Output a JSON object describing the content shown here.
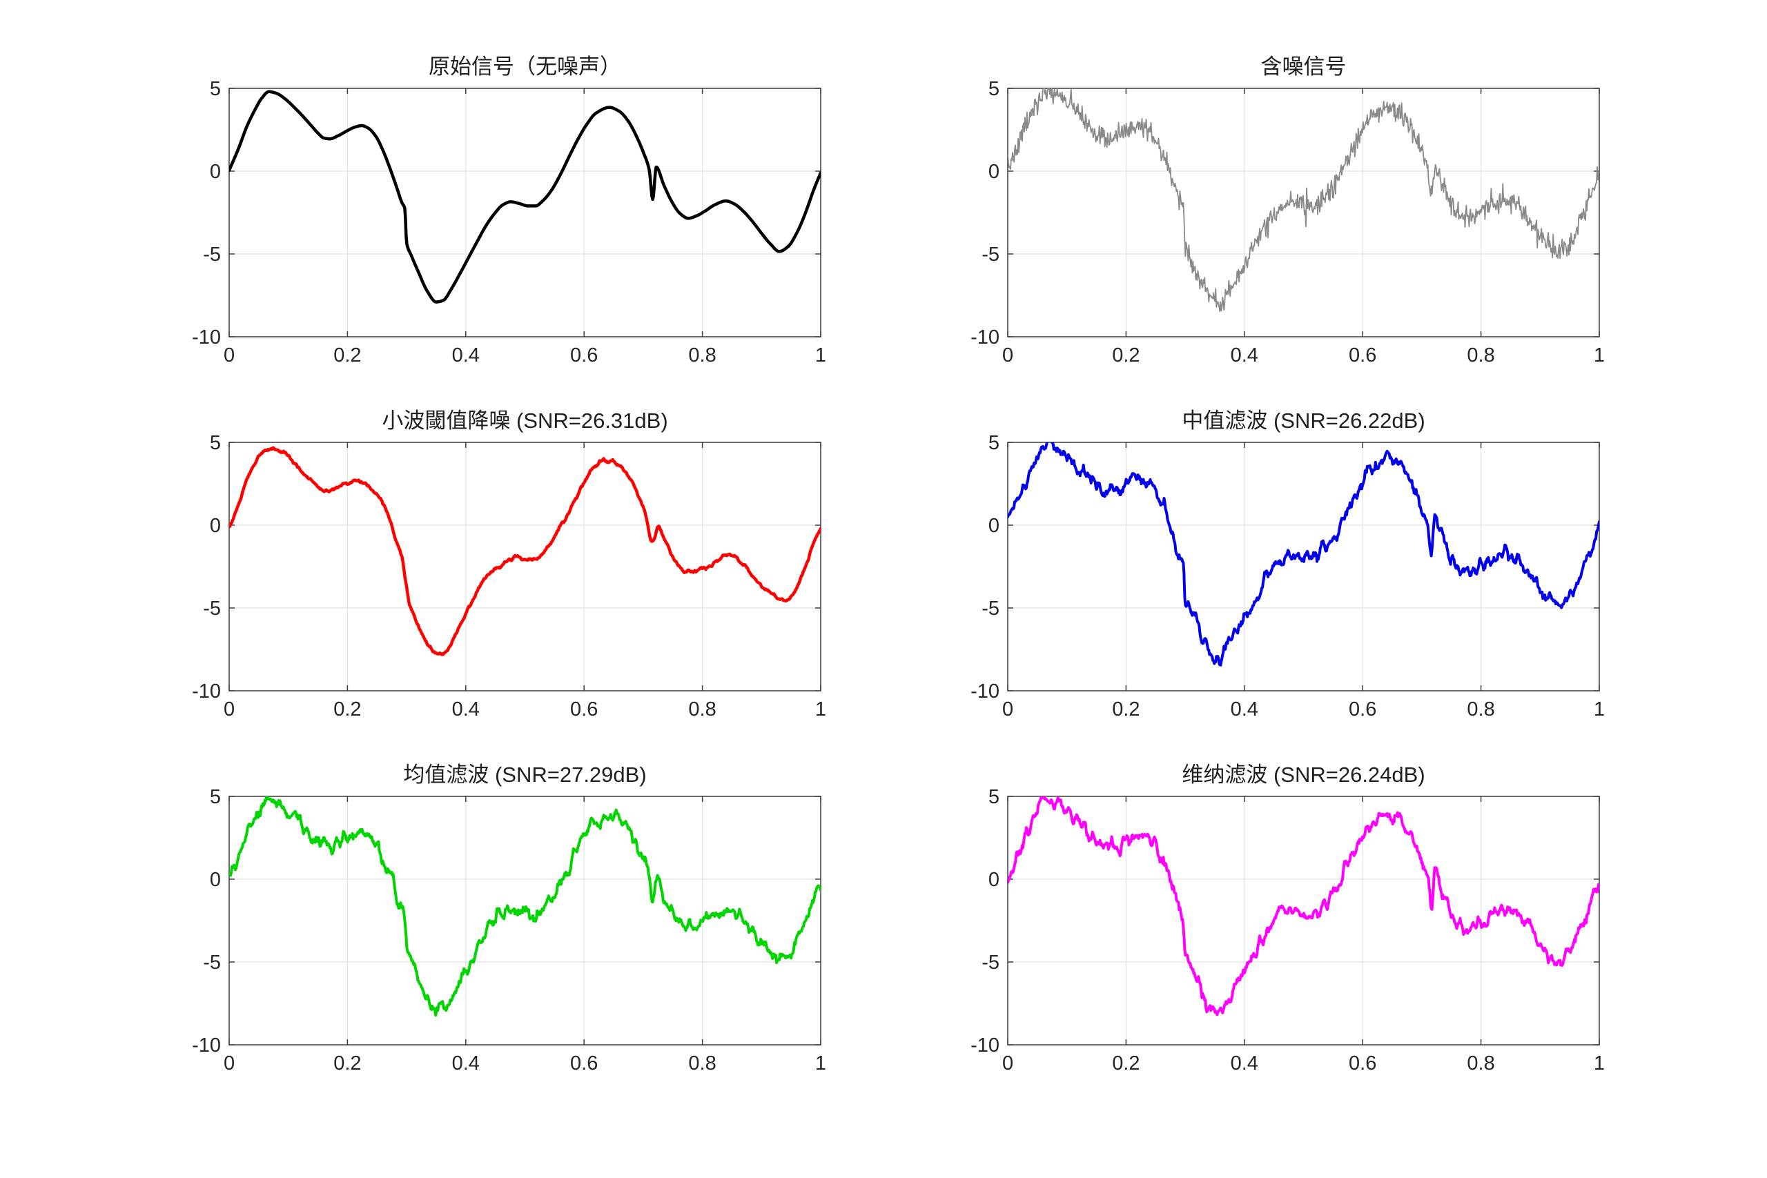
{
  "figure": {
    "background": "#ffffff",
    "description": "MATLAB-style 3x2 subplot figure comparing signal denoising methods"
  },
  "chart_data": {
    "type": "line",
    "layout": "3 rows x 2 columns subplots",
    "xlim": [
      0,
      1
    ],
    "ylim": [
      -10,
      5
    ],
    "x_ticks": [
      0,
      0.2,
      0.4,
      0.6,
      0.8,
      1
    ],
    "x_tick_labels": [
      "0",
      "0.2",
      "0.4",
      "0.6",
      "0.8",
      "1"
    ],
    "y_ticks": [
      5,
      0,
      -5,
      -10
    ],
    "y_tick_labels": [
      "5",
      "0",
      "-5",
      "-10"
    ],
    "grid": true,
    "grid_color": "#e2e2e2",
    "axis_color": "#3d3d3d",
    "tick_label_color": "#262626",
    "base_signal_control_points": [
      [
        0.0,
        0.05
      ],
      [
        0.015,
        1.3
      ],
      [
        0.03,
        2.7
      ],
      [
        0.045,
        3.8
      ],
      [
        0.055,
        4.4
      ],
      [
        0.067,
        4.8
      ],
      [
        0.08,
        4.7
      ],
      [
        0.095,
        4.35
      ],
      [
        0.11,
        3.85
      ],
      [
        0.125,
        3.3
      ],
      [
        0.14,
        2.7
      ],
      [
        0.15,
        2.3
      ],
      [
        0.16,
        2.0
      ],
      [
        0.17,
        1.95
      ],
      [
        0.185,
        2.15
      ],
      [
        0.2,
        2.45
      ],
      [
        0.212,
        2.65
      ],
      [
        0.224,
        2.75
      ],
      [
        0.235,
        2.6
      ],
      [
        0.248,
        2.1
      ],
      [
        0.26,
        1.25
      ],
      [
        0.272,
        0.15
      ],
      [
        0.283,
        -0.95
      ],
      [
        0.292,
        -1.9
      ],
      [
        0.297,
        -2.25
      ],
      [
        0.3,
        -4.35
      ],
      [
        0.308,
        -5.1
      ],
      [
        0.32,
        -6.1
      ],
      [
        0.335,
        -7.25
      ],
      [
        0.35,
        -7.9
      ],
      [
        0.362,
        -7.8
      ],
      [
        0.375,
        -7.15
      ],
      [
        0.39,
        -6.2
      ],
      [
        0.405,
        -5.2
      ],
      [
        0.42,
        -4.2
      ],
      [
        0.435,
        -3.25
      ],
      [
        0.45,
        -2.5
      ],
      [
        0.462,
        -2.05
      ],
      [
        0.476,
        -1.85
      ],
      [
        0.49,
        -1.95
      ],
      [
        0.505,
        -2.1
      ],
      [
        0.518,
        -2.1
      ],
      [
        0.53,
        -1.8
      ],
      [
        0.545,
        -1.15
      ],
      [
        0.56,
        -0.2
      ],
      [
        0.575,
        0.9
      ],
      [
        0.59,
        1.95
      ],
      [
        0.605,
        2.85
      ],
      [
        0.62,
        3.5
      ],
      [
        0.643,
        3.85
      ],
      [
        0.66,
        3.6
      ],
      [
        0.675,
        3.0
      ],
      [
        0.69,
        2.0
      ],
      [
        0.7,
        1.15
      ],
      [
        0.71,
        0.1
      ],
      [
        0.716,
        -1.7
      ],
      [
        0.722,
        0.25
      ],
      [
        0.735,
        -0.85
      ],
      [
        0.75,
        -1.95
      ],
      [
        0.762,
        -2.55
      ],
      [
        0.776,
        -2.85
      ],
      [
        0.79,
        -2.7
      ],
      [
        0.805,
        -2.4
      ],
      [
        0.82,
        -2.05
      ],
      [
        0.84,
        -1.8
      ],
      [
        0.855,
        -2.0
      ],
      [
        0.87,
        -2.45
      ],
      [
        0.885,
        -3.05
      ],
      [
        0.9,
        -3.75
      ],
      [
        0.915,
        -4.4
      ],
      [
        0.93,
        -4.85
      ],
      [
        0.945,
        -4.55
      ],
      [
        0.96,
        -3.7
      ],
      [
        0.975,
        -2.45
      ],
      [
        0.988,
        -1.15
      ],
      [
        1.0,
        -0.1
      ]
    ],
    "subplots": [
      {
        "id": "original",
        "title": "原始信号（无噪声）",
        "color": "#000000",
        "line_width": 4.5,
        "noise_sigma": 0,
        "noise_smooth": 1,
        "signal_smooth": 1,
        "seed": 1
      },
      {
        "id": "noisy",
        "title": "含噪信号",
        "color": "#8a8a8a",
        "line_width": 1.8,
        "noise_sigma": 0.33,
        "noise_smooth": 1,
        "signal_smooth": 1,
        "seed": 7
      },
      {
        "id": "wavelet",
        "title": "小波閾值降噪 (SNR=26.31dB)",
        "snr_db": 26.31,
        "color": "#ff0000",
        "line_width": 4.5,
        "noise_sigma": 0.13,
        "noise_smooth": 25,
        "signal_smooth": 11,
        "seed": 11
      },
      {
        "id": "median",
        "title": "中值滤波 (SNR=26.22dB)",
        "snr_db": 26.22,
        "color": "#0000ee",
        "line_width": 4,
        "noise_sigma": 0.26,
        "noise_smooth": 4,
        "signal_smooth": 1,
        "seed": 23
      },
      {
        "id": "mean",
        "title": "均值滤波 (SNR=27.29dB)",
        "snr_db": 27.29,
        "color": "#00d500",
        "line_width": 4,
        "noise_sigma": 0.22,
        "noise_smooth": 5,
        "signal_smooth": 5,
        "seed": 31
      },
      {
        "id": "wiener",
        "title": "维纳滤波 (SNR=26.24dB)",
        "snr_db": 26.24,
        "color": "#ff00ff",
        "line_width": 4,
        "noise_sigma": 0.26,
        "noise_smooth": 4,
        "signal_smooth": 1,
        "seed": 41
      }
    ]
  }
}
